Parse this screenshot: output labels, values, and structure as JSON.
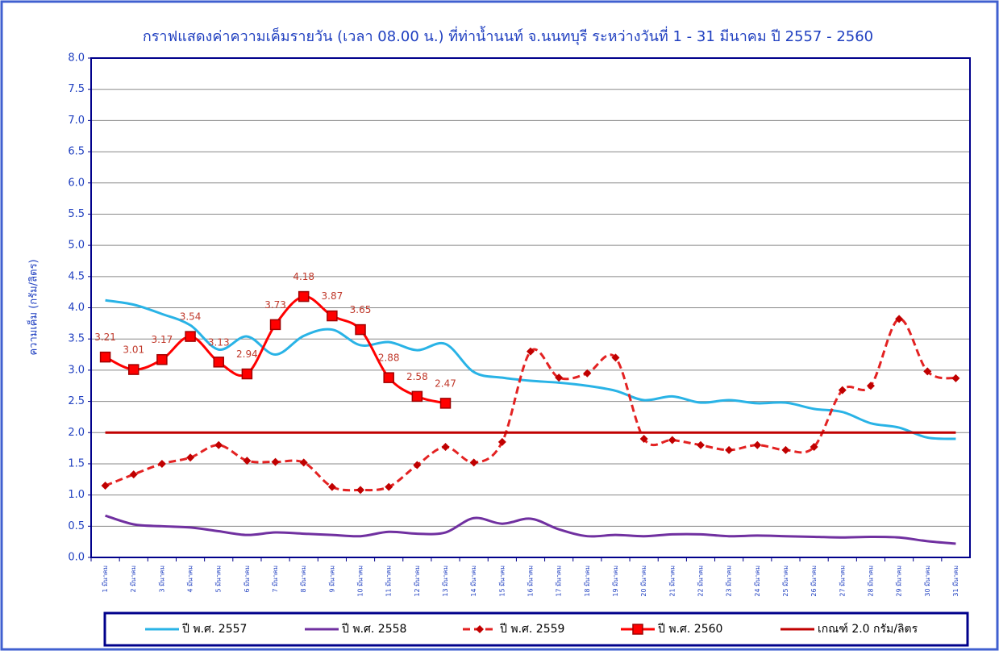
{
  "chart_data": {
    "type": "line",
    "title": "กราฟแสดงค่าความเค็มรายวัน  (เวลา 08.00 น.) ที่ท่าน้ำนนท์ จ.นนทบุรี ระหว่างวันที่ 1 - 31 มีนาคม ปี 2557 - 2560",
    "y_label": "ความเค็ม  (กรัม/ลิตร)",
    "categories": [
      "1 มีนาคม",
      "2 มีนาคม",
      "3 มีนาคม",
      "4 มีนาคม",
      "5 มีนาคม",
      "6 มีนาคม",
      "7 มีนาคม",
      "8 มีนาคม",
      "9 มีนาคม",
      "10 มีนาคม",
      "11 มีนาคม",
      "12 มีนาคม",
      "13 มีนาคม",
      "14 มีนาคม",
      "15 มีนาคม",
      "16 มีนาคม",
      "17 มีนาคม",
      "18 มีนาคม",
      "19 มีนาคม",
      "20 มีนาคม",
      "21 มีนาคม",
      "22 มีนาคม",
      "23 มีนาคม",
      "24 มีนาคม",
      "25 มีนาคม",
      "26 มีนาคม",
      "27 มีนาคม",
      "28 มีนาคม",
      "29 มีนาคม",
      "30 มีนาคม",
      "31 มีนาคม"
    ],
    "ylim": [
      0,
      8
    ],
    "yticks": [
      {
        "value": 0,
        "label": "0.0"
      },
      {
        "value": 0.5,
        "label": "0.5"
      },
      {
        "value": 1,
        "label": "1.0"
      },
      {
        "value": 1.5,
        "label": "1.5"
      },
      {
        "value": 2,
        "label": "2.0"
      },
      {
        "value": 2.5,
        "label": "2.5"
      },
      {
        "value": 3,
        "label": "3.0"
      },
      {
        "value": 3.5,
        "label": "3.5"
      },
      {
        "value": 4,
        "label": "4.0"
      },
      {
        "value": 4.5,
        "label": "4.5"
      },
      {
        "value": 5,
        "label": "5.0"
      },
      {
        "value": 5.5,
        "label": "5.5"
      },
      {
        "value": 6,
        "label": "6.0"
      },
      {
        "value": 6.5,
        "label": "6.5"
      },
      {
        "value": 7,
        "label": "7.0"
      },
      {
        "value": 7.5,
        "label": "7.5"
      },
      {
        "value": 8,
        "label": "8.0"
      }
    ],
    "grid": true,
    "series": [
      {
        "name": "ปี พ.ศ. 2557",
        "color": "#29b3e6",
        "values": [
          4.12,
          4.05,
          3.9,
          3.72,
          3.33,
          3.54,
          3.25,
          3.55,
          3.65,
          3.4,
          3.45,
          3.32,
          3.42,
          2.97,
          2.88,
          2.83,
          2.8,
          2.75,
          2.67,
          2.52,
          2.58,
          2.48,
          2.52,
          2.47,
          2.48,
          2.38,
          2.33,
          2.15,
          2.08,
          1.92,
          1.9
        ]
      },
      {
        "name": "ปี พ.ศ. 2558",
        "color": "#7030a0",
        "values": [
          0.67,
          0.53,
          0.5,
          0.48,
          0.42,
          0.36,
          0.4,
          0.38,
          0.36,
          0.34,
          0.41,
          0.38,
          0.4,
          0.63,
          0.54,
          0.62,
          0.45,
          0.34,
          0.36,
          0.34,
          0.37,
          0.37,
          0.34,
          0.35,
          0.34,
          0.33,
          0.32,
          0.33,
          0.32,
          0.26,
          0.22
        ]
      },
      {
        "name": "ปี พ.ศ. 2559",
        "color": "#e32222",
        "dashed": true,
        "marker": "diamond",
        "values": [
          1.15,
          1.33,
          1.5,
          1.6,
          1.8,
          1.55,
          1.53,
          1.52,
          1.13,
          1.08,
          1.13,
          1.48,
          1.77,
          1.52,
          1.85,
          3.3,
          2.88,
          2.95,
          3.2,
          1.9,
          1.88,
          1.8,
          1.72,
          1.8,
          1.72,
          1.77,
          2.68,
          2.75,
          3.82,
          2.98,
          2.87
        ]
      },
      {
        "name": "ปี พ.ศ. 2560",
        "color": "#ff0000",
        "marker": "square",
        "data_labels": true,
        "values": [
          3.21,
          3.01,
          3.17,
          3.54,
          3.13,
          2.94,
          3.73,
          4.18,
          3.87,
          3.65,
          2.88,
          2.58,
          2.47,
          null,
          null,
          null,
          null,
          null,
          null,
          null,
          null,
          null,
          null,
          null,
          null,
          null,
          null,
          null,
          null,
          null,
          null
        ]
      },
      {
        "name": "เกณฑ์ 2.0 กรัม/ลิตร",
        "color": "#c00000",
        "values": [
          2,
          2,
          2,
          2,
          2,
          2,
          2,
          2,
          2,
          2,
          2,
          2,
          2,
          2,
          2,
          2,
          2,
          2,
          2,
          2,
          2,
          2,
          2,
          2,
          2,
          2,
          2,
          2,
          2,
          2,
          2
        ]
      }
    ]
  }
}
